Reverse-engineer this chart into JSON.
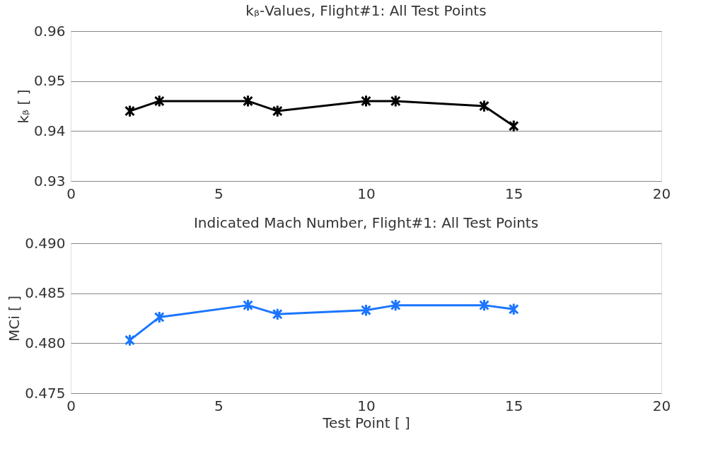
{
  "chart_data": [
    {
      "type": "line",
      "title": "kᵦ-Values, Flight#1: All Test Points",
      "ylabel": "kᵦ  [ ]",
      "x": [
        2,
        3,
        6,
        7,
        10,
        11,
        14,
        15
      ],
      "series": [
        {
          "color": "#000000",
          "values": [
            0.944,
            0.946,
            0.946,
            0.944,
            0.946,
            0.946,
            0.945,
            0.941
          ]
        }
      ],
      "xlim": [
        0,
        20
      ],
      "xticks": [
        0,
        5,
        10,
        15,
        20
      ],
      "ylim": [
        0.93,
        0.96
      ],
      "yticks": [
        0.93,
        0.94,
        0.95,
        0.96
      ],
      "grid": "y",
      "marker": "cross",
      "line_style": "solid"
    },
    {
      "type": "line",
      "title": "Indicated Mach Number, Flight#1: All Test Points",
      "ylabel": "MCi  [ ]",
      "xlabel": "Test Point  [ ]",
      "x": [
        2,
        3,
        6,
        7,
        10,
        11,
        14,
        15
      ],
      "series": [
        {
          "color": "#1a75ff",
          "values": [
            0.4803,
            0.4826,
            0.4838,
            0.4829,
            0.4833,
            0.4838,
            0.4838,
            0.4834
          ]
        }
      ],
      "xlim": [
        0,
        20
      ],
      "xticks": [
        0,
        5,
        10,
        15,
        20
      ],
      "ylim": [
        0.475,
        0.49
      ],
      "yticks": [
        0.475,
        {
          "value": 0.48,
          "label": "0.480"
        },
        0.485,
        {
          "value": 0.49,
          "label": "0.490"
        }
      ],
      "grid": "y",
      "marker": "cross",
      "line_style": "solid"
    }
  ]
}
